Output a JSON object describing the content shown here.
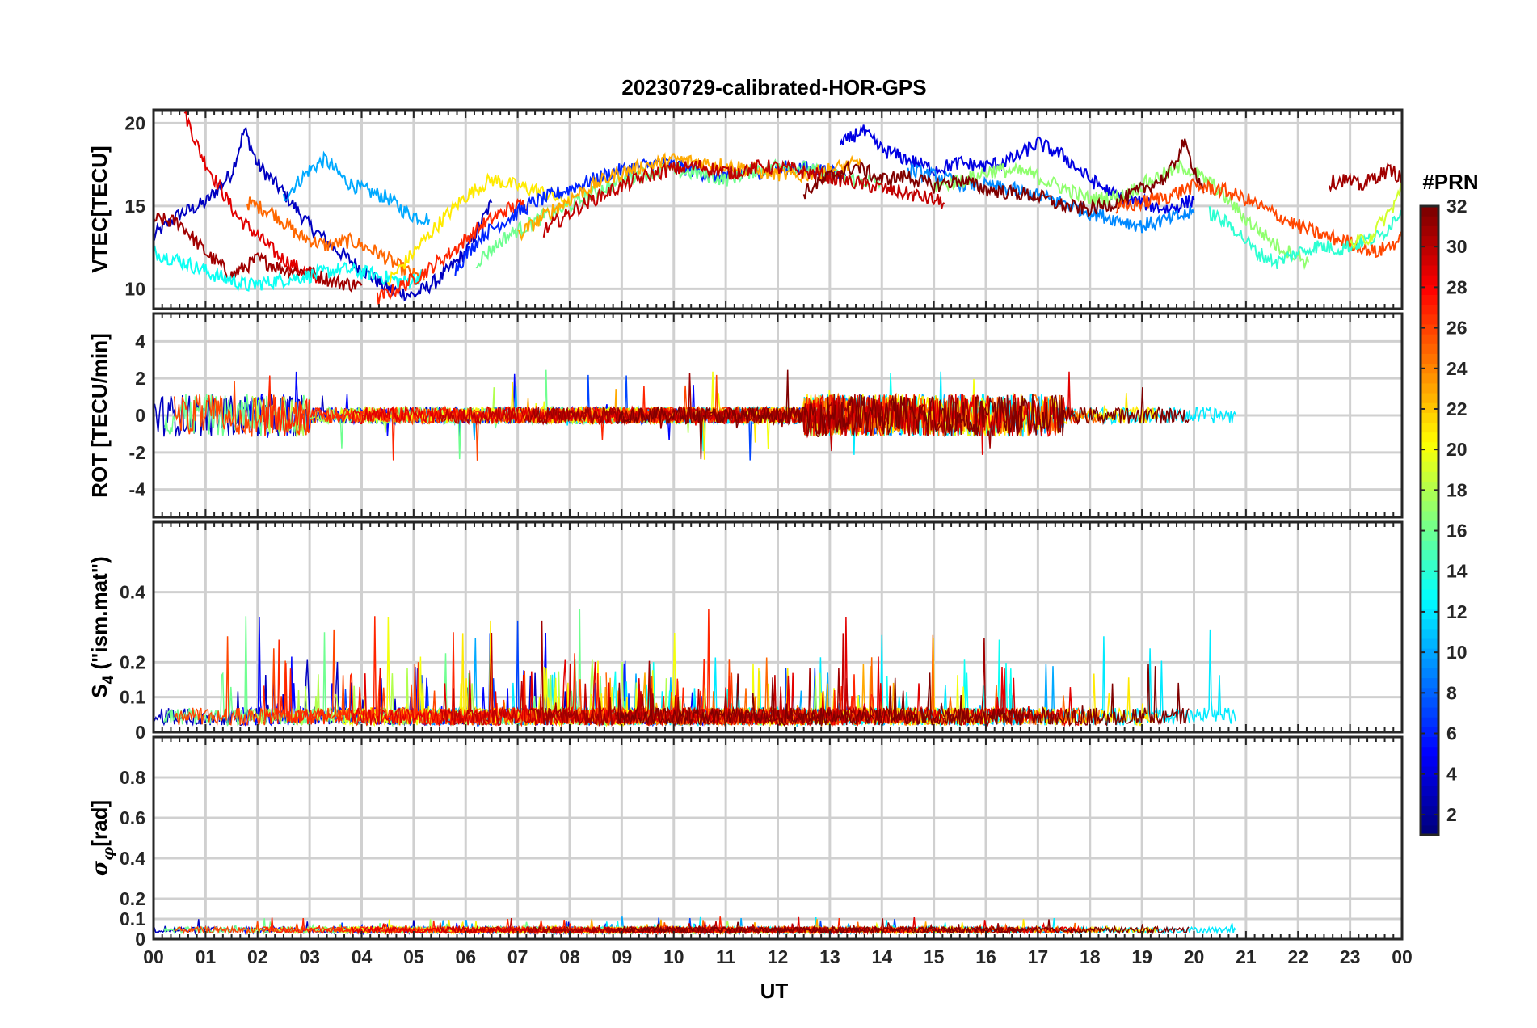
{
  "chart_data": {
    "type": "line",
    "title": "20230729-calibrated-HOR-GPS",
    "xlabel": "UT",
    "x_ticks": [
      "00",
      "01",
      "02",
      "03",
      "04",
      "05",
      "06",
      "07",
      "08",
      "09",
      "10",
      "11",
      "12",
      "13",
      "14",
      "15",
      "16",
      "17",
      "18",
      "19",
      "20",
      "21",
      "22",
      "23",
      "00"
    ],
    "xlim": [
      0,
      24
    ],
    "grid": true,
    "colorbar": {
      "label": "#PRN",
      "colormap": "jet",
      "range": [
        1,
        32
      ],
      "ticks": [
        "2",
        "4",
        "6",
        "8",
        "10",
        "12",
        "14",
        "16",
        "18",
        "20",
        "22",
        "24",
        "26",
        "28",
        "30",
        "32"
      ]
    },
    "panels": [
      {
        "ylabel": "VTEC[TECU]",
        "ylim": [
          8.8,
          20.8
        ],
        "yticks": [
          "10",
          "15",
          "20"
        ],
        "series": [
          {
            "prn": 3,
            "x": [
              0,
              0.5,
              1.0,
              1.5,
              1.75,
              2.0,
              2.5,
              3.0,
              3.5,
              4.0,
              4.5,
              5.0,
              5.5,
              6.0,
              6.5
            ],
            "y": [
              13.2,
              14.5,
              15.2,
              17.0,
              19.6,
              17.5,
              15.8,
              13.8,
              12.4,
              11.2,
              10.0,
              9.6,
              10.6,
              12.2,
              15.2
            ]
          },
          {
            "prn": 10,
            "x": [
              2.5,
              3.0,
              3.3,
              3.7,
              4.0,
              4.5,
              4.9,
              5.3
            ],
            "y": [
              15.5,
              17.2,
              17.8,
              16.5,
              16.0,
              15.5,
              14.5,
              14.2
            ]
          },
          {
            "prn": 29,
            "x": [
              0.6,
              0.9,
              1.2,
              1.6,
              2.0,
              2.4,
              2.8,
              3.2
            ],
            "y": [
              20.6,
              18.2,
              16.5,
              14.4,
              13.2,
              12.0,
              11.2,
              10.6
            ]
          },
          {
            "prn": 25,
            "x": [
              1.8,
              2.3,
              2.8,
              3.3,
              3.8,
              4.3,
              4.8,
              5.2
            ],
            "y": [
              15.2,
              14.6,
              13.2,
              12.6,
              12.9,
              12.2,
              11.2,
              10.5
            ]
          },
          {
            "prn": 31,
            "x": [
              0,
              0.5,
              1.0,
              1.5,
              2.0,
              2.5,
              3.0,
              3.5,
              4.0
            ],
            "y": [
              14.2,
              14.0,
              12.2,
              10.8,
              11.8,
              11.2,
              11.0,
              10.4,
              10.2
            ]
          },
          {
            "prn": 13,
            "x": [
              0,
              0.6,
              1.2,
              1.8,
              2.4,
              3.0,
              3.6,
              4.2,
              4.8,
              5.2
            ],
            "y": [
              12.2,
              11.6,
              10.8,
              10.2,
              10.5,
              10.8,
              11.2,
              10.9,
              10.4,
              10.8
            ]
          },
          {
            "prn": 21,
            "x": [
              4.5,
              5.0,
              5.5,
              6.0,
              6.5,
              7.0,
              7.5,
              8.0
            ],
            "y": [
              10.4,
              12.2,
              14.0,
              15.6,
              16.6,
              16.2,
              15.8,
              15.2
            ]
          },
          {
            "prn": 27,
            "x": [
              4.3,
              4.8,
              5.3,
              5.8,
              6.3,
              6.8,
              7.2
            ],
            "y": [
              9.4,
              10.2,
              11.2,
              12.4,
              13.8,
              14.8,
              15.2
            ]
          },
          {
            "prn": 6,
            "x": [
              5.8,
              6.3,
              6.8,
              7.3,
              7.8,
              8.3,
              8.8,
              9.3,
              9.8,
              10.3,
              10.8,
              11.3,
              11.8,
              12.3,
              12.8,
              13.3
            ],
            "y": [
              11.2,
              13.2,
              14.2,
              15.2,
              15.8,
              16.4,
              17.0,
              17.4,
              17.6,
              17.2,
              16.8,
              17.0,
              17.1,
              17.4,
              17.2,
              16.8
            ]
          },
          {
            "prn": 16,
            "x": [
              6.2,
              6.8,
              7.4,
              8.0,
              8.6,
              9.2,
              9.8,
              10.4,
              11.0,
              11.6,
              12.2,
              12.8,
              13.4,
              14.0
            ],
            "y": [
              11.6,
              13.2,
              14.2,
              15.0,
              16.0,
              16.8,
              17.2,
              17.0,
              16.6,
              17.2,
              17.6,
              17.0,
              16.6,
              16.4
            ]
          },
          {
            "prn": 23,
            "x": [
              7.0,
              7.6,
              8.2,
              8.8,
              9.4,
              10.0,
              10.6,
              11.2,
              11.8,
              12.4,
              13.0,
              13.6
            ],
            "y": [
              13.2,
              14.6,
              15.8,
              16.8,
              17.4,
              17.8,
              17.6,
              17.4,
              17.0,
              16.8,
              17.2,
              17.6
            ]
          },
          {
            "prn": 30,
            "x": [
              7.5,
              8.1,
              8.7,
              9.3,
              9.9,
              10.5,
              11.1,
              11.7,
              12.3,
              12.9,
              13.5,
              14.1,
              14.7,
              15.2
            ],
            "y": [
              13.5,
              14.8,
              15.8,
              16.6,
              17.2,
              17.4,
              17.0,
              17.4,
              17.2,
              16.8,
              16.4,
              16.0,
              15.6,
              15.2
            ]
          },
          {
            "prn": 4,
            "x": [
              13.2,
              13.6,
              14.0,
              14.5,
              15.0,
              15.5,
              16.0,
              16.5,
              17.0,
              17.5,
              18.0,
              18.5,
              19.0,
              19.5,
              20.0
            ],
            "y": [
              18.6,
              19.6,
              18.4,
              17.8,
              17.2,
              17.6,
              17.4,
              17.8,
              18.8,
              18.0,
              16.6,
              15.6,
              15.2,
              14.8,
              15.4
            ]
          },
          {
            "prn": 9,
            "x": [
              14.5,
              15.0,
              15.5,
              16.0,
              16.5,
              17.0,
              17.5,
              18.0,
              18.5,
              19.0,
              19.5,
              20.0
            ],
            "y": [
              17.2,
              16.8,
              16.4,
              16.2,
              16.0,
              15.6,
              15.2,
              14.6,
              14.2,
              13.8,
              14.2,
              14.6
            ]
          },
          {
            "prn": 17,
            "x": [
              15.0,
              15.6,
              16.2,
              16.8,
              17.4,
              18.0,
              18.6,
              19.2,
              19.8,
              20.4,
              21.0,
              21.6,
              22.2
            ],
            "y": [
              16.2,
              16.6,
              17.2,
              17.0,
              16.2,
              15.4,
              15.6,
              16.6,
              17.4,
              16.2,
              14.2,
              12.6,
              11.6
            ]
          },
          {
            "prn": 32,
            "x": [
              12.5,
              13.0,
              13.5,
              14.0,
              14.5,
              15.0,
              15.5,
              16.0,
              16.5,
              17.0,
              17.5,
              18.0,
              18.5,
              19.0,
              19.5,
              19.8,
              20.2
            ],
            "y": [
              15.8,
              16.8,
              17.4,
              16.6,
              16.8,
              16.2,
              16.6,
              16.0,
              15.8,
              15.6,
              15.0,
              14.8,
              15.2,
              16.0,
              16.8,
              18.8,
              15.8
            ]
          },
          {
            "prn": 26,
            "x": [
              18.5,
              19.0,
              19.5,
              20.0,
              20.5,
              21.0,
              21.5,
              22.0,
              22.5,
              23.0,
              23.5,
              24.0
            ],
            "y": [
              14.8,
              15.2,
              15.6,
              16.2,
              16.0,
              15.4,
              14.6,
              13.8,
              13.2,
              12.8,
              12.2,
              13.0
            ]
          },
          {
            "prn": 14,
            "x": [
              20.3,
              20.8,
              21.2,
              21.6,
              22.0,
              22.4,
              22.8,
              23.2,
              23.6,
              24.0
            ],
            "y": [
              14.6,
              13.6,
              12.2,
              11.6,
              12.2,
              12.6,
              12.4,
              12.8,
              13.2,
              14.8
            ]
          },
          {
            "prn": 31,
            "x": [
              22.6,
              22.9,
              23.2,
              23.5,
              23.8,
              24.0
            ],
            "y": [
              16.4,
              16.6,
              16.2,
              16.8,
              17.2,
              16.6
            ]
          },
          {
            "prn": 19,
            "x": [
              23.0,
              23.4,
              23.8,
              24.0
            ],
            "y": [
              12.6,
              13.2,
              14.8,
              16.2
            ]
          }
        ]
      },
      {
        "ylabel": "ROT [TECU/min]",
        "ylim": [
          -5.5,
          5.5
        ],
        "yticks": [
          "-4",
          "-2",
          "0",
          "2",
          "4"
        ],
        "note": "noise-like traces around 0 for all PRNs"
      },
      {
        "ylabel": "S4 (\"ism.mat\")",
        "ylabel_main": "S",
        "ylabel_sub": "4",
        "ylabel_rest": " (\"ism.mat\")",
        "ylim": [
          0,
          0.6
        ],
        "yticks": [
          "0",
          "0.1",
          "0.2",
          "0.4"
        ],
        "note": "spiky scintillation index traces, mostly below 0.2"
      },
      {
        "ylabel": "σφ[rad]",
        "ylabel_main": "σ",
        "ylabel_sub": "φ",
        "ylabel_rest": "[rad]",
        "ylim": [
          0,
          1.0
        ],
        "yticks": [
          "0",
          "0.1",
          "0.2",
          "0.4",
          "0.6",
          "0.8"
        ],
        "note": "small phase scintillation values near 0.05"
      }
    ]
  }
}
